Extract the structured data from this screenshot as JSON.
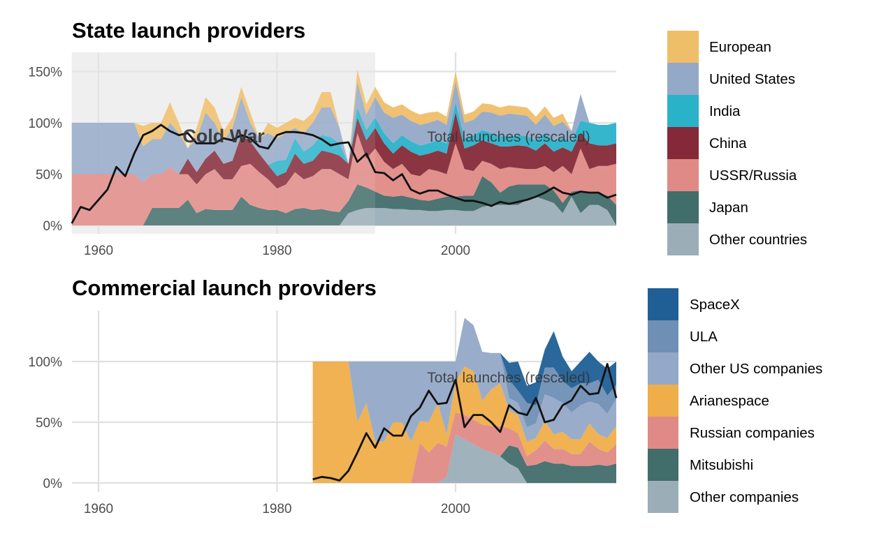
{
  "chart_data": [
    {
      "type": "area",
      "stacked": true,
      "title": "State launch providers",
      "xlabel": "",
      "ylabel": "",
      "xlim": [
        1957,
        2018
      ],
      "ylim": [
        0,
        165
      ],
      "x_ticks": [
        1960,
        1980,
        2000
      ],
      "x_tick_labels": [
        "1960",
        "1980",
        "2000"
      ],
      "y_ticks": [
        0,
        50,
        100,
        150
      ],
      "y_tick_labels": [
        "0%",
        "50%",
        "100%",
        "150%"
      ],
      "grid": true,
      "legend_position": "right",
      "shaded_region": {
        "label": "Cold War",
        "from": 1957,
        "to": 1991
      },
      "line_label": "Total launches (rescaled)",
      "x_start": 1957,
      "series": [
        {
          "name": "Other countries",
          "color": "#9BAEB7",
          "values": [
            0,
            0,
            0,
            0,
            0,
            0,
            0,
            0,
            0,
            0,
            0,
            0,
            0,
            0,
            0,
            0,
            0,
            0,
            0,
            0,
            0,
            0,
            0,
            0,
            0,
            0,
            0,
            0,
            0,
            0,
            0,
            12,
            15,
            17,
            17,
            17,
            16,
            16,
            15,
            15,
            14,
            14,
            15,
            15,
            14,
            14,
            18,
            20,
            20,
            20,
            20,
            25,
            28,
            25,
            22,
            12,
            28,
            12,
            20,
            20,
            15,
            0
          ]
        },
        {
          "name": "Japan",
          "color": "#416D6A",
          "values": [
            0,
            0,
            0,
            0,
            0,
            0,
            0,
            0,
            0,
            17,
            17,
            17,
            17,
            25,
            12,
            16,
            15,
            15,
            15,
            28,
            20,
            17,
            15,
            15,
            12,
            16,
            17,
            15,
            16,
            14,
            13,
            12,
            25,
            20,
            16,
            12,
            12,
            13,
            12,
            10,
            10,
            12,
            13,
            13,
            15,
            15,
            30,
            22,
            12,
            18,
            20,
            15,
            12,
            15,
            12,
            10,
            5,
            22,
            12,
            12,
            14,
            20
          ]
        },
        {
          "name": "USSR/Russia",
          "color": "#DF8A86",
          "values": [
            50,
            50,
            50,
            50,
            50,
            50,
            50,
            50,
            42,
            33,
            33,
            40,
            33,
            25,
            28,
            34,
            40,
            30,
            30,
            30,
            40,
            35,
            30,
            21,
            28,
            36,
            28,
            33,
            39,
            41,
            37,
            21,
            50,
            28,
            42,
            33,
            27,
            31,
            23,
            23,
            31,
            27,
            22,
            52,
            26,
            24,
            15,
            18,
            23,
            19,
            16,
            15,
            15,
            18,
            18,
            36,
            17,
            41,
            23,
            26,
            29,
            40
          ]
        },
        {
          "name": "China",
          "color": "#852938",
          "values": [
            0,
            0,
            0,
            0,
            0,
            0,
            0,
            0,
            0,
            0,
            0,
            0,
            0,
            15,
            12,
            15,
            18,
            15,
            18,
            30,
            22,
            18,
            14,
            12,
            12,
            18,
            15,
            15,
            18,
            16,
            18,
            15,
            15,
            18,
            20,
            18,
            15,
            18,
            22,
            20,
            15,
            20,
            20,
            30,
            20,
            25,
            20,
            20,
            22,
            20,
            22,
            22,
            18,
            22,
            20,
            18,
            22,
            15,
            25,
            20,
            20,
            20
          ]
        },
        {
          "name": "India",
          "color": "#2AB2C9",
          "values": [
            0,
            0,
            0,
            0,
            0,
            0,
            0,
            0,
            0,
            0,
            0,
            0,
            0,
            0,
            0,
            0,
            0,
            0,
            0,
            0,
            0,
            0,
            0,
            15,
            12,
            15,
            12,
            15,
            15,
            15,
            12,
            0,
            10,
            10,
            10,
            10,
            10,
            10,
            10,
            10,
            10,
            10,
            10,
            10,
            10,
            10,
            10,
            10,
            10,
            10,
            10,
            10,
            10,
            10,
            10,
            10,
            10,
            12,
            20,
            20,
            20,
            20
          ]
        },
        {
          "name": "United States",
          "color": "#93A9C7",
          "values": [
            50,
            50,
            50,
            50,
            50,
            50,
            50,
            50,
            35,
            34,
            34,
            43,
            40,
            10,
            33,
            45,
            27,
            22,
            32,
            37,
            18,
            15,
            31,
            22,
            26,
            10,
            18,
            22,
            27,
            29,
            15,
            0,
            25,
            15,
            20,
            20,
            25,
            20,
            20,
            20,
            20,
            20,
            18,
            20,
            15,
            15,
            18,
            20,
            20,
            22,
            20,
            20,
            15,
            18,
            15,
            15,
            10,
            26,
            0,
            0,
            0,
            0
          ]
        },
        {
          "name": "European",
          "color": "#EFBE68",
          "values": [
            0,
            0,
            0,
            0,
            0,
            0,
            0,
            0,
            20,
            16,
            16,
            20,
            10,
            0,
            10,
            15,
            15,
            10,
            10,
            10,
            10,
            0,
            10,
            10,
            10,
            10,
            12,
            10,
            15,
            15,
            0,
            0,
            12,
            10,
            10,
            10,
            10,
            10,
            10,
            10,
            10,
            8,
            8,
            10,
            8,
            8,
            8,
            8,
            8,
            8,
            8,
            8,
            8,
            8,
            8,
            8,
            0,
            0,
            0,
            0,
            0,
            0
          ]
        }
      ],
      "total_line": [
        2,
        18,
        15,
        25,
        35,
        57,
        48,
        70,
        88,
        92,
        98,
        92,
        88,
        90,
        80,
        80,
        80,
        85,
        83,
        88,
        85,
        77,
        75,
        88,
        91,
        91,
        90,
        88,
        84,
        78,
        80,
        81,
        62,
        70,
        52,
        51,
        44,
        50,
        35,
        31,
        34,
        34,
        30,
        27,
        24,
        24,
        22,
        19,
        23,
        21,
        23,
        25,
        28,
        32,
        37,
        32,
        30,
        33,
        32,
        32,
        27,
        30
      ]
    },
    {
      "type": "area",
      "stacked": true,
      "title": "Commercial launch providers",
      "xlabel": "",
      "ylabel": "",
      "xlim": [
        1957,
        2018
      ],
      "ylim": [
        0,
        140
      ],
      "x_ticks": [
        1960,
        1980,
        2000
      ],
      "x_tick_labels": [
        "1960",
        "1980",
        "2000"
      ],
      "y_ticks": [
        0,
        50,
        100
      ],
      "y_tick_labels": [
        "0%",
        "50%",
        "100%"
      ],
      "grid": true,
      "legend_position": "right",
      "line_label": "Total launches (rescaled)",
      "x_start": 1984,
      "series": [
        {
          "name": "Other companies",
          "color": "#9BAEB7",
          "values": [
            0,
            0,
            0,
            0,
            0,
            0,
            0,
            0,
            0,
            0,
            0,
            0,
            0,
            0,
            0,
            5,
            40,
            36,
            32,
            28,
            25,
            22,
            16,
            12,
            0,
            0,
            0,
            0,
            0,
            0,
            0,
            0,
            0,
            0,
            0
          ]
        },
        {
          "name": "Mitsubishi",
          "color": "#416D6A",
          "values": [
            0,
            0,
            0,
            0,
            0,
            0,
            0,
            0,
            0,
            0,
            0,
            0,
            0,
            0,
            0,
            0,
            0,
            0,
            0,
            0,
            0,
            0,
            15,
            17,
            14,
            15,
            18,
            16,
            16,
            14,
            14,
            14,
            15,
            14,
            16
          ]
        },
        {
          "name": "Russian companies",
          "color": "#DF8A86",
          "values": [
            0,
            0,
            0,
            0,
            0,
            0,
            0,
            0,
            0,
            0,
            0,
            0,
            33,
            25,
            33,
            25,
            18,
            20,
            20,
            20,
            22,
            25,
            14,
            12,
            8,
            12,
            17,
            12,
            12,
            10,
            10,
            20,
            13,
            11,
            16
          ]
        },
        {
          "name": "Arianespace",
          "color": "#EFAE4A",
          "values": [
            100,
            100,
            100,
            100,
            100,
            50,
            66,
            34,
            34,
            50,
            50,
            34,
            18,
            25,
            33,
            10,
            25,
            40,
            40,
            20,
            30,
            35,
            15,
            15,
            12,
            10,
            16,
            12,
            14,
            12,
            12,
            15,
            12,
            12,
            15
          ]
        },
        {
          "name": "Other US companies",
          "color": "#93A9C7",
          "values": [
            0,
            0,
            0,
            0,
            0,
            50,
            34,
            66,
            66,
            50,
            50,
            66,
            49,
            50,
            34,
            60,
            17,
            40,
            38,
            40,
            30,
            25,
            10,
            10,
            12,
            12,
            22,
            30,
            24,
            22,
            28,
            18,
            25,
            20,
            22
          ]
        },
        {
          "name": "ULA",
          "color": "#6F8FB5",
          "values": [
            0,
            0,
            0,
            0,
            0,
            0,
            0,
            0,
            0,
            0,
            0,
            0,
            0,
            0,
            0,
            0,
            0,
            0,
            0,
            0,
            0,
            0,
            15,
            10,
            20,
            15,
            22,
            25,
            18,
            20,
            18,
            15,
            20,
            15,
            12
          ]
        },
        {
          "name": "SpaceX",
          "color": "#1F5F96",
          "values": [
            0,
            0,
            0,
            0,
            0,
            0,
            0,
            0,
            0,
            0,
            0,
            0,
            0,
            0,
            0,
            0,
            0,
            0,
            0,
            0,
            0,
            0,
            14,
            24,
            14,
            19,
            15,
            30,
            20,
            14,
            18,
            26,
            15,
            22,
            19
          ]
        }
      ],
      "total_line": [
        3,
        5,
        4,
        2,
        10,
        25,
        41,
        29,
        45,
        39,
        39,
        55,
        62,
        76,
        65,
        66,
        85,
        46,
        56,
        56,
        50,
        42,
        64,
        58,
        56,
        70,
        50,
        52,
        64,
        68,
        80,
        73,
        74,
        98,
        70
      ]
    }
  ]
}
